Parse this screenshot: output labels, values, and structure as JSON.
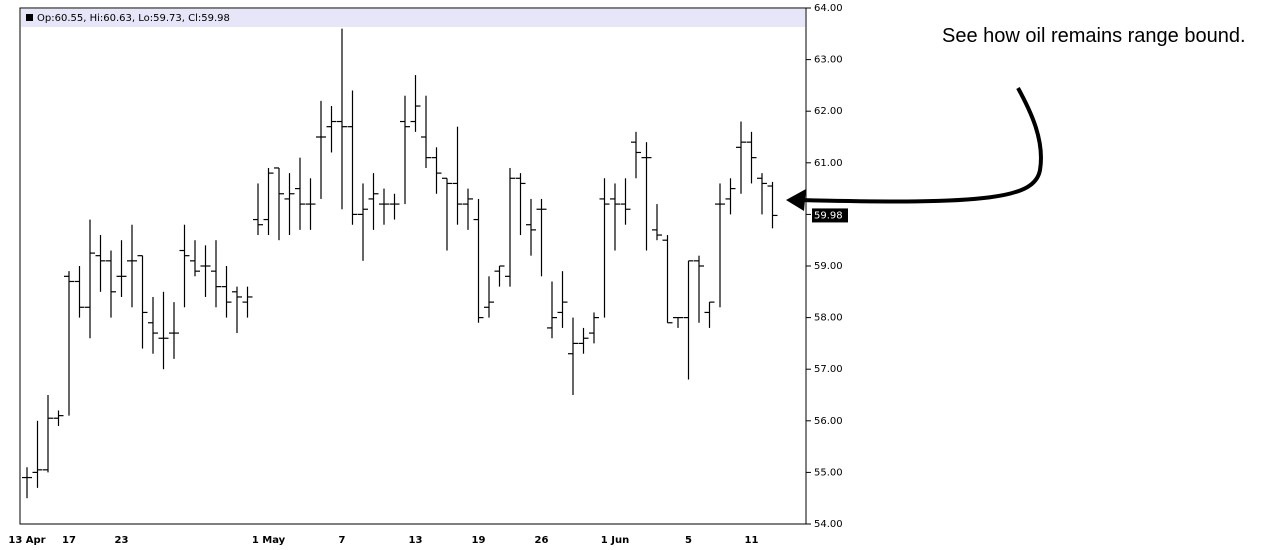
{
  "chart_data": {
    "type": "ohlc",
    "legend_text": "Op:60.55, Hi:60.63, Lo:59.73, Cl:59.98",
    "annotation": "See how oil remains range bound.",
    "color": "#000000",
    "categories": [
      "13 Apr",
      null,
      null,
      null,
      "17",
      null,
      null,
      null,
      null,
      "23",
      null,
      null,
      null,
      null,
      null,
      null,
      null,
      null,
      null,
      null,
      null,
      null,
      null,
      "1 May",
      null,
      null,
      null,
      null,
      null,
      null,
      "7",
      null,
      null,
      null,
      null,
      null,
      null,
      "13",
      null,
      null,
      null,
      null,
      null,
      "19",
      null,
      null,
      null,
      null,
      null,
      "26",
      null,
      null,
      null,
      null,
      null,
      null,
      "1 Jun",
      null,
      null,
      null,
      null,
      null,
      null,
      "5",
      null,
      null,
      null,
      null,
      null,
      "11",
      null,
      null
    ],
    "open": [
      54.9,
      55.0,
      55.05,
      56.05,
      58.8,
      58.7,
      58.2,
      59.2,
      59.1,
      58.8,
      59.1,
      59.2,
      57.9,
      57.6,
      57.7,
      59.3,
      59.1,
      59.0,
      58.9,
      58.6,
      58.5,
      58.3,
      59.9,
      59.9,
      60.9,
      60.3,
      60.5,
      60.2,
      61.5,
      61.7,
      61.8,
      61.7,
      60.0,
      60.3,
      60.2,
      60.2,
      61.8,
      61.8,
      61.5,
      61.1,
      60.7,
      60.6,
      60.2,
      59.9,
      58.2,
      58.9,
      58.8,
      60.7,
      59.8,
      60.1,
      57.8,
      58.1,
      57.3,
      57.5,
      57.7,
      60.3,
      60.3,
      60.2,
      61.4,
      61.1,
      59.7,
      59.5,
      58.0,
      58.0,
      59.1,
      58.1,
      60.2,
      60.3,
      61.3,
      61.4,
      60.7,
      60.55
    ],
    "high": [
      55.1,
      56.0,
      56.5,
      56.2,
      58.9,
      59.0,
      59.9,
      59.6,
      59.3,
      59.5,
      59.8,
      59.2,
      58.4,
      58.5,
      58.3,
      59.8,
      59.5,
      59.4,
      59.5,
      59.0,
      58.6,
      58.6,
      60.6,
      60.9,
      60.9,
      60.8,
      61.1,
      60.7,
      62.2,
      62.1,
      63.6,
      62.4,
      60.6,
      60.8,
      60.5,
      60.4,
      62.3,
      62.7,
      62.3,
      61.3,
      60.7,
      61.7,
      60.5,
      60.3,
      58.8,
      59.0,
      60.9,
      60.8,
      60.3,
      60.3,
      58.7,
      58.9,
      58.0,
      57.8,
      58.1,
      60.7,
      60.6,
      60.7,
      61.6,
      61.4,
      60.2,
      59.6,
      58.0,
      59.1,
      59.2,
      58.3,
      60.6,
      60.7,
      61.8,
      61.6,
      60.8,
      60.63
    ],
    "low": [
      54.5,
      54.7,
      55.0,
      55.9,
      56.1,
      58.0,
      57.6,
      58.5,
      58.0,
      58.4,
      58.2,
      57.4,
      57.3,
      57.0,
      57.2,
      58.2,
      58.8,
      58.4,
      58.2,
      58.0,
      57.7,
      58.0,
      59.6,
      59.6,
      59.5,
      59.6,
      59.7,
      59.7,
      60.3,
      61.2,
      60.1,
      59.8,
      59.1,
      59.7,
      59.8,
      59.9,
      60.2,
      61.6,
      60.9,
      60.4,
      59.3,
      59.8,
      59.7,
      57.9,
      58.0,
      58.6,
      58.6,
      59.6,
      59.2,
      58.8,
      57.6,
      57.8,
      56.5,
      57.3,
      57.5,
      58.0,
      59.3,
      59.8,
      60.7,
      59.3,
      59.5,
      57.9,
      57.8,
      56.8,
      57.9,
      57.8,
      58.2,
      60.0,
      60.4,
      60.6,
      60.0,
      59.73
    ],
    "close": [
      54.9,
      55.05,
      56.05,
      56.1,
      58.7,
      58.2,
      59.25,
      59.1,
      58.5,
      58.8,
      59.1,
      58.1,
      57.7,
      57.6,
      57.7,
      59.2,
      58.9,
      59.0,
      58.6,
      58.3,
      58.4,
      58.4,
      59.8,
      60.8,
      60.4,
      60.4,
      60.2,
      60.2,
      61.5,
      61.8,
      61.7,
      60.0,
      60.1,
      60.4,
      60.2,
      60.2,
      61.7,
      62.1,
      61.1,
      60.8,
      60.6,
      60.2,
      60.3,
      58.0,
      58.3,
      59.0,
      60.7,
      60.6,
      59.7,
      60.1,
      58.0,
      58.3,
      57.5,
      57.6,
      58.0,
      60.2,
      60.2,
      60.1,
      61.2,
      61.1,
      59.6,
      57.9,
      58.0,
      59.1,
      59.0,
      58.3,
      60.2,
      60.5,
      61.4,
      61.1,
      60.6,
      59.98
    ],
    "ylim": [
      54,
      64
    ],
    "yticks": [
      {
        "value": 54,
        "label": "54.00"
      },
      {
        "value": 55,
        "label": "55.00"
      },
      {
        "value": 56,
        "label": "56.00"
      },
      {
        "value": 57,
        "label": "57.00"
      },
      {
        "value": 58,
        "label": "58.00"
      },
      {
        "value": 59,
        "label": "59.00"
      },
      {
        "value": 60,
        "label": "60.00"
      },
      {
        "value": 61,
        "label": "61.00"
      },
      {
        "value": 62,
        "label": "62.00"
      },
      {
        "value": 63,
        "label": "63.00"
      },
      {
        "value": 64,
        "label": "64.00"
      }
    ]
  }
}
